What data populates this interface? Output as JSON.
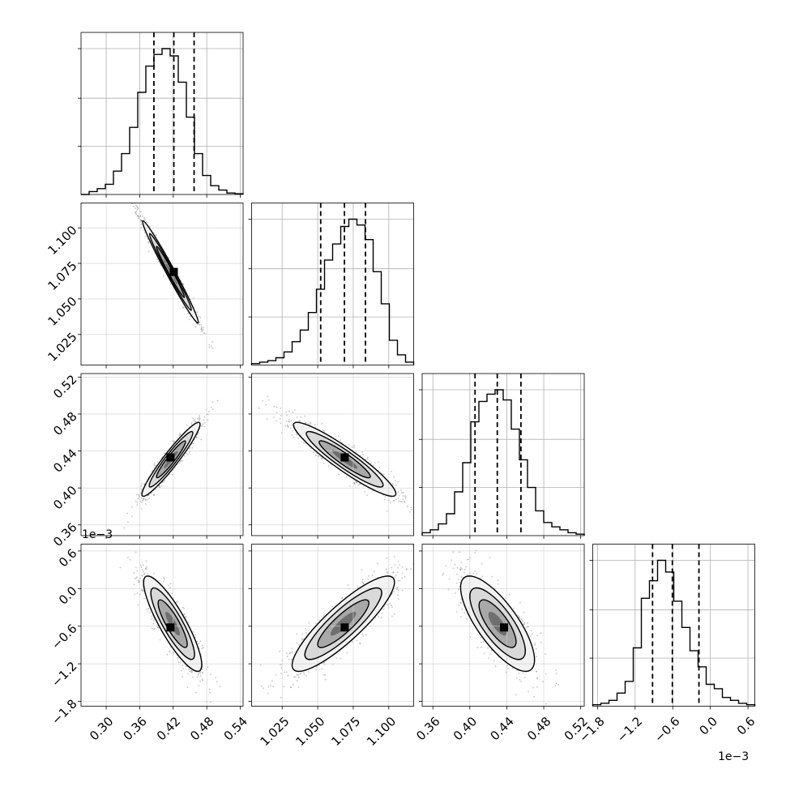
{
  "chart_data": {
    "type": "corner",
    "parameters": [
      {
        "index": 0,
        "range": [
          0.255,
          0.545
        ],
        "ticks": [
          "0.30",
          "0.36",
          "0.42",
          "0.48",
          "0.54"
        ],
        "tick_values": [
          0.3,
          0.36,
          0.42,
          0.48,
          0.54
        ],
        "quantiles": [
          0.3854,
          0.4211,
          0.4573
        ],
        "hist_max": 1.0
      },
      {
        "index": 1,
        "range": [
          1.0035,
          1.1175
        ],
        "ticks": [
          "1.025",
          "1.050",
          "1.075",
          "1.100"
        ],
        "tick_values": [
          1.025,
          1.05,
          1.075,
          1.1
        ],
        "quantiles": [
          1.0521,
          1.0688,
          1.0836
        ],
        "hist_max": 1.0
      },
      {
        "index": 2,
        "range": [
          0.3484,
          0.5238
        ],
        "ticks": [
          "0.36",
          "0.40",
          "0.44",
          "0.48",
          "0.52"
        ],
        "tick_values": [
          0.36,
          0.4,
          0.44,
          0.48,
          0.52
        ],
        "quantiles": [
          0.4056,
          0.4297,
          0.4553
        ],
        "hist_max": 1.0
      },
      {
        "index": 3,
        "range": [
          -1.876,
          0.709
        ],
        "ticks": [
          "−1.8",
          "−1.2",
          "−0.6",
          "0.0",
          "0.6"
        ],
        "tick_values": [
          -1.8,
          -1.2,
          -0.6,
          0.0,
          0.6
        ],
        "quantiles": [
          -0.922,
          -0.606,
          -0.182
        ],
        "hist_max": 1.0,
        "offset": "1e−3"
      }
    ],
    "histograms": [
      [
        0.0,
        0.02,
        0.04,
        0.07,
        0.16,
        0.28,
        0.46,
        0.7,
        0.88,
        0.96,
        1.0,
        0.95,
        0.77,
        0.53,
        0.28,
        0.13,
        0.06,
        0.03,
        0.01,
        0.005
      ],
      [
        0.01,
        0.02,
        0.03,
        0.05,
        0.09,
        0.16,
        0.24,
        0.36,
        0.52,
        0.72,
        0.83,
        0.95,
        1.0,
        0.96,
        0.86,
        0.64,
        0.42,
        0.17,
        0.07,
        0.02
      ],
      [
        0.02,
        0.04,
        0.08,
        0.15,
        0.3,
        0.5,
        0.78,
        0.92,
        0.97,
        1.0,
        0.93,
        0.73,
        0.52,
        0.33,
        0.17,
        0.09,
        0.06,
        0.04,
        0.02,
        0.01
      ],
      [
        0.01,
        0.02,
        0.04,
        0.09,
        0.17,
        0.4,
        0.74,
        0.86,
        1.0,
        0.92,
        0.72,
        0.54,
        0.38,
        0.27,
        0.15,
        0.12,
        0.06,
        0.04,
        0.02,
        0.01
      ]
    ],
    "pairs": [
      {
        "row": 1,
        "col": 0,
        "center": [
          0.415,
          1.069
        ],
        "sd": [
          0.025,
          0.018
        ],
        "corr": -0.985,
        "peak": [
          0.421,
          1.069
        ]
      },
      {
        "row": 2,
        "col": 0,
        "center": [
          0.416,
          0.431
        ],
        "sd": [
          0.026,
          0.02
        ],
        "corr": 0.95,
        "peak": [
          0.415,
          0.433
        ]
      },
      {
        "row": 2,
        "col": 1,
        "center": [
          1.069,
          0.431
        ],
        "sd": [
          0.018,
          0.02
        ],
        "corr": -0.93,
        "peak": [
          1.069,
          0.433
        ]
      },
      {
        "row": 3,
        "col": 0,
        "center": [
          0.419,
          -0.56
        ],
        "sd": [
          0.026,
          0.38
        ],
        "corr": -0.86,
        "peak": [
          0.415,
          -0.62
        ]
      },
      {
        "row": 3,
        "col": 1,
        "center": [
          1.068,
          -0.56
        ],
        "sd": [
          0.018,
          0.38
        ],
        "corr": 0.87,
        "peak": [
          1.069,
          -0.62
        ]
      },
      {
        "row": 3,
        "col": 2,
        "center": [
          0.43,
          -0.56
        ],
        "sd": [
          0.02,
          0.38
        ],
        "corr": -0.76,
        "peak": [
          0.437,
          -0.62
        ]
      }
    ],
    "contour_levels_sigma": [
      0.5,
      1.0,
      1.5,
      2.0
    ],
    "grid": true,
    "axis_offset_labels": {
      "row3_y": "1e−3",
      "col3_x": "1e−3"
    }
  }
}
